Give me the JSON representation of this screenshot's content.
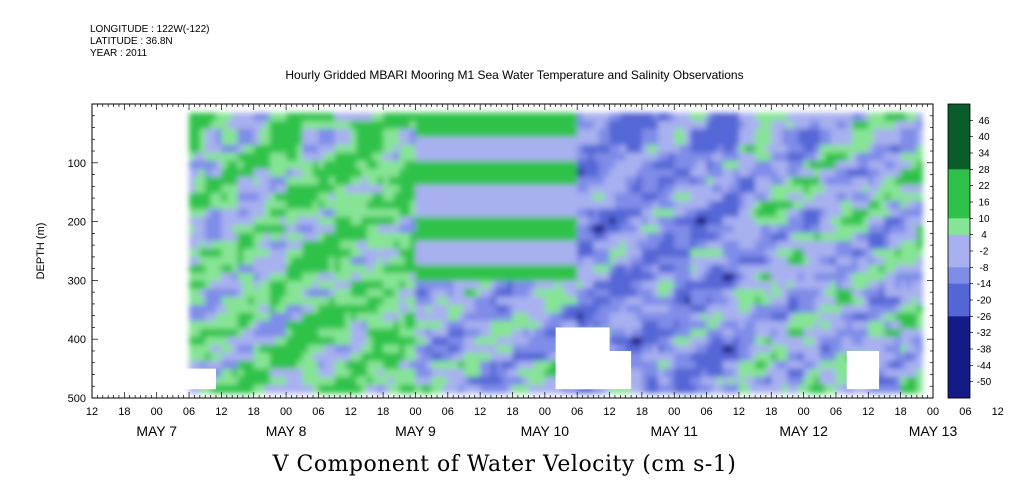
{
  "header": {
    "longitude": "LONGITUDE : 122W(-122)",
    "latitude": "LATITUDE : 36.8N",
    "year": "YEAR : 2011"
  },
  "chart_data": {
    "type": "heatmap",
    "title": "Hourly Gridded MBARI Mooring M1 Sea Water Temperature and Salinity Observations",
    "variable_label": "V Component of Water Velocity (cm s-1)",
    "ylabel": "DEPTH (m)",
    "ylim": [
      500,
      0
    ],
    "y_ticks": [
      100,
      200,
      300,
      400,
      500
    ],
    "x_hour_ticks": [
      "12",
      "18",
      "00",
      "06",
      "12",
      "18",
      "00",
      "06",
      "12",
      "18",
      "00",
      "06",
      "12",
      "18",
      "00",
      "06",
      "12",
      "18",
      "00",
      "06",
      "12",
      "18",
      "00",
      "06",
      "12",
      "18",
      "00",
      "06",
      "12",
      "18",
      "00"
    ],
    "x_date_labels": [
      "MAY 7",
      "MAY 8",
      "MAY 9",
      "MAY 10",
      "MAY 11",
      "MAY 12",
      "MAY 13"
    ],
    "colorbar_levels": [
      46,
      40,
      34,
      28,
      22,
      16,
      10,
      4,
      -2,
      -8,
      -14,
      -20,
      -26,
      -32,
      -38,
      -44,
      -50
    ],
    "colors": {
      "strong_positive": "#0a5c2a",
      "moderate_positive": "#2fc24a",
      "weak_positive": "#86e495",
      "near_zero": "#a8b0f0",
      "weak_negative": "#7f8ce8",
      "moderate_negative": "#5466d6",
      "strong_negative": "#141b86"
    },
    "data_regions": [
      {
        "day_start": "May 7 00",
        "day_end": "May 8 00",
        "depth_top": 15,
        "depth_bottom": 485,
        "dominant": "mixed",
        "mean_v": 4
      },
      {
        "day_start": "May 8 00",
        "day_end": "May 9 00",
        "depth_top": 15,
        "depth_bottom": 485,
        "dominant": "positive",
        "mean_v": 8
      },
      {
        "day_start": "May 9 00",
        "day_end": "May 10 06",
        "depth_top": 15,
        "depth_bottom": 300,
        "dominant": "positive_banded",
        "mean_v": 6
      },
      {
        "day_start": "May 9 00",
        "day_end": "May 10 06",
        "depth_top": 300,
        "depth_bottom": 485,
        "dominant": "weak_negative",
        "mean_v": -4
      },
      {
        "day_start": "May 10 06",
        "day_end": "May 11 12",
        "depth_top": 15,
        "depth_bottom": 485,
        "dominant": "negative",
        "mean_v": -10
      },
      {
        "day_start": "May 11 12",
        "day_end": "May 12 18",
        "depth_top": 15,
        "depth_bottom": 485,
        "dominant": "mixed",
        "mean_v": -2
      },
      {
        "day_start": "May 12 18",
        "day_end": "May 13 23",
        "depth_top": 15,
        "depth_bottom": 485,
        "dominant": "mixed",
        "mean_v": 2
      }
    ]
  }
}
